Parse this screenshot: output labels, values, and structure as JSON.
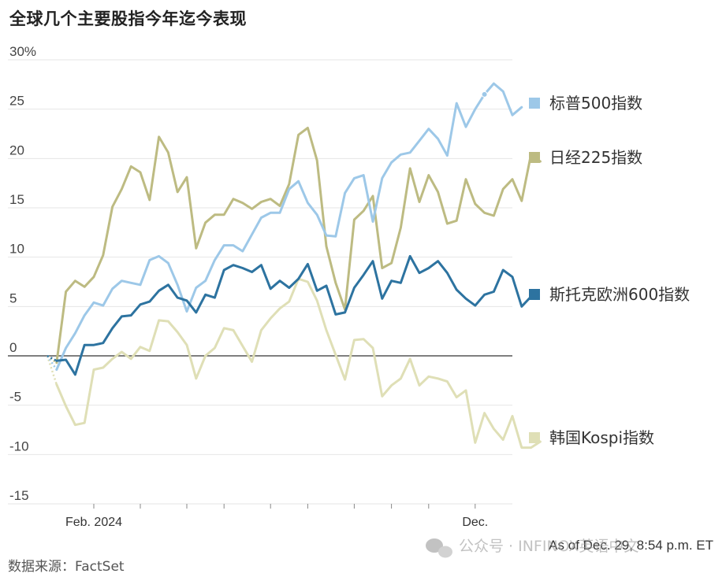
{
  "title": "全球几个主要股指今年迄今表现",
  "source": "数据来源：FactSet",
  "footnote": "As of Dec. 29, 8:54 p.m. ET",
  "watermark": "公众号 · INFINOX英语中文",
  "colors": {
    "sp500": "#9dc8e8",
    "nikkei": "#bdbb82",
    "stoxx": "#2d73a0",
    "kospi": "#dfdfb6",
    "zero_line": "#333333",
    "grid": "#e6e6e6"
  },
  "chart_data": {
    "type": "line",
    "title": "全球几个主要股指今年迄今表现",
    "xlabel": "",
    "ylabel": "",
    "ylim": [
      -15,
      30
    ],
    "yticks": [
      {
        "value": 30,
        "label": "30%"
      },
      {
        "value": 25,
        "label": "25"
      },
      {
        "value": 20,
        "label": "20"
      },
      {
        "value": 15,
        "label": "15"
      },
      {
        "value": 10,
        "label": "10"
      },
      {
        "value": 5,
        "label": "5"
      },
      {
        "value": 0,
        "label": "0"
      },
      {
        "value": -5,
        "label": "-5"
      },
      {
        "value": -10,
        "label": "-10"
      },
      {
        "value": -15,
        "label": "-15"
      }
    ],
    "xlim": [
      0,
      50
    ],
    "xtick_marks": [
      5,
      10,
      15,
      19,
      24,
      28,
      33,
      37,
      41,
      46
    ],
    "xtick_labels": [
      {
        "x": 5,
        "label": "Feb. 2024"
      },
      {
        "x": 46,
        "label": "Dec."
      }
    ],
    "grid": true,
    "legend_placement": "right",
    "series": [
      {
        "name": "标普500指数",
        "color_key": "sp500",
        "values": [
          0,
          -1.4,
          0.8,
          2.3,
          4.1,
          5.4,
          5.1,
          6.8,
          7.6,
          7.4,
          7.2,
          9.7,
          10.1,
          9.4,
          7.2,
          4.5,
          6.9,
          7.6,
          9.7,
          11.2,
          11.2,
          10.6,
          12.3,
          14,
          14.5,
          14.5,
          16.9,
          17.7,
          15.5,
          14.3,
          12.2,
          12.1,
          16.5,
          18,
          18.3,
          13.6,
          18,
          19.6,
          20.4,
          20.6,
          21.8,
          23,
          22,
          20.3,
          25.6,
          23.2,
          25,
          26.5,
          27.6,
          26.8,
          24.4,
          25.2
        ]
      },
      {
        "name": "日经225指数",
        "color_key": "nikkei",
        "values": [
          0,
          -0.7,
          6.5,
          7.6,
          7,
          8,
          10.2,
          15.1,
          16.9,
          19.2,
          18.6,
          15.8,
          22.2,
          20.6,
          16.6,
          18.1,
          10.9,
          13.5,
          14.3,
          14.3,
          15.9,
          15.5,
          14.9,
          15.6,
          15.9,
          15.2,
          17.4,
          22.4,
          23.1,
          19.8,
          11.1,
          7.4,
          4.7,
          13.8,
          14.7,
          16.2,
          8.9,
          9.4,
          13,
          19,
          15.6,
          18.3,
          16.6,
          13.4,
          13.7,
          17.9,
          15.4,
          14.5,
          14.2,
          16.9,
          17.9,
          15.7,
          20.4,
          19.7
        ]
      },
      {
        "name": "斯托克欧洲600指数",
        "color_key": "stoxx",
        "values": [
          0,
          -0.5,
          -0.4,
          -1.9,
          1.1,
          1.1,
          1.3,
          2.8,
          4,
          4.1,
          5.2,
          5.5,
          6.6,
          7.2,
          5.9,
          5.6,
          4.4,
          6.2,
          5.9,
          8.7,
          9.2,
          8.9,
          8.5,
          9.2,
          6.8,
          7.6,
          6.9,
          7.8,
          9.3,
          6.6,
          7.1,
          4.2,
          4.4,
          6.9,
          8.2,
          9.6,
          5.8,
          7.6,
          7.4,
          10.1,
          8.4,
          8.9,
          9.6,
          8.4,
          6.7,
          5.8,
          5.1,
          6.2,
          6.5,
          8.7,
          8,
          5,
          6
        ]
      },
      {
        "name": "韩国Kospi指数",
        "color_key": "kospi",
        "values": [
          0,
          -2.9,
          -5.1,
          -7,
          -6.8,
          -1.4,
          -1.2,
          -0.3,
          0.4,
          -0.3,
          0.9,
          0.5,
          3.6,
          3.5,
          2.4,
          1.1,
          -2.3,
          0,
          0.8,
          2.8,
          2.6,
          1,
          -0.6,
          2.6,
          3.8,
          4.8,
          5.5,
          7.8,
          7.5,
          5.6,
          2.6,
          0.1,
          -2.4,
          1.6,
          1.7,
          0.8,
          -4.1,
          -3,
          -2.3,
          -0.3,
          -3,
          -2.1,
          -2.3,
          -2.6,
          -4.2,
          -3.5,
          -8.8,
          -5.8,
          -7.4,
          -8.5,
          -6.1,
          -9.3,
          -9.3,
          -8.7
        ]
      }
    ],
    "highlight_point": {
      "series": "标普500指数",
      "x": 47,
      "y": 26.5
    }
  },
  "legend": [
    {
      "label": "标普500指数",
      "color_key": "sp500"
    },
    {
      "label": "日经225指数",
      "color_key": "nikkei"
    },
    {
      "label": "斯托克欧洲600指数",
      "color_key": "stoxx"
    },
    {
      "label": "韩国Kospi指数",
      "color_key": "kospi"
    }
  ]
}
